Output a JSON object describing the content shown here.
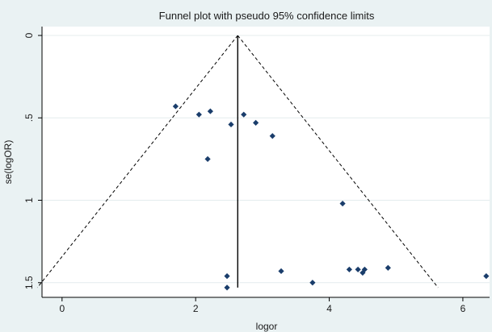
{
  "chart_data": {
    "type": "scatter",
    "title": "Funnel plot with pseudo 95% confidence limits",
    "xlabel": "logor",
    "ylabel": "se(logOR)",
    "xlim": [
      -0.3,
      6.4
    ],
    "ylim": [
      0,
      1.55
    ],
    "y_reversed": true,
    "grid": true,
    "x_ticks": [
      0,
      2,
      4,
      6
    ],
    "y_ticks": [
      0,
      0.5,
      1,
      1.5
    ],
    "x_tick_labels": [
      "0",
      "2",
      "4",
      "6"
    ],
    "y_tick_labels": [
      "0",
      ".5",
      "1",
      "1.5"
    ],
    "pooled_estimate": 2.63,
    "confidence_level": 95,
    "colors": {
      "background": "#eaf2f3",
      "plot_area": "#ffffff",
      "marker": "#1a3d6b",
      "lines": "#000000",
      "grid": "#e4ecee"
    },
    "points": [
      {
        "x": 1.7,
        "y": 0.43
      },
      {
        "x": 2.05,
        "y": 0.48
      },
      {
        "x": 2.22,
        "y": 0.46
      },
      {
        "x": 2.72,
        "y": 0.48
      },
      {
        "x": 2.53,
        "y": 0.54
      },
      {
        "x": 2.9,
        "y": 0.53
      },
      {
        "x": 3.15,
        "y": 0.61
      },
      {
        "x": 2.18,
        "y": 0.75
      },
      {
        "x": 4.2,
        "y": 1.02
      },
      {
        "x": 2.47,
        "y": 1.46
      },
      {
        "x": 2.47,
        "y": 1.53
      },
      {
        "x": 3.28,
        "y": 1.43
      },
      {
        "x": 3.75,
        "y": 1.5
      },
      {
        "x": 4.3,
        "y": 1.42
      },
      {
        "x": 4.43,
        "y": 1.42
      },
      {
        "x": 4.5,
        "y": 1.44
      },
      {
        "x": 4.53,
        "y": 1.42
      },
      {
        "x": 4.88,
        "y": 1.41
      },
      {
        "x": 6.35,
        "y": 1.46
      }
    ]
  }
}
